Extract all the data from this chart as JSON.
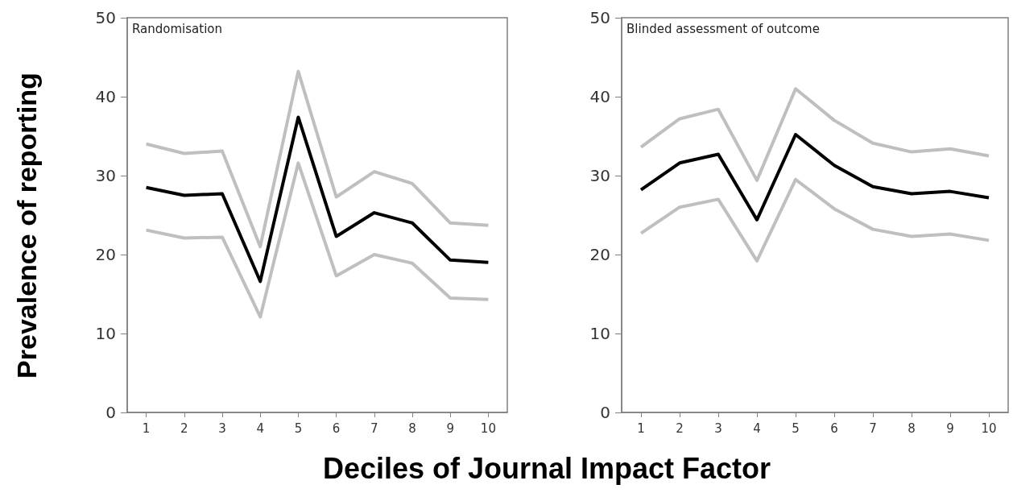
{
  "chart_data": [
    {
      "type": "line",
      "ylabel": "Prevalence of reporting",
      "xlabel": "Deciles of Journal Impact Factor",
      "annotations": [
        "Randomisation"
      ],
      "categories": [
        "1",
        "2",
        "3",
        "4",
        "5",
        "6",
        "7",
        "8",
        "9",
        "10"
      ],
      "ylim": [
        0,
        50
      ],
      "yticks": [
        0,
        10,
        20,
        30,
        40,
        50
      ],
      "grid": false,
      "marker": "none",
      "line_style": "solid",
      "series": [
        {
          "color": "#bfbfbf",
          "values": [
            34,
            32.8,
            33.1,
            21,
            43.2,
            27.3,
            30.5,
            29,
            24,
            23.7
          ]
        },
        {
          "color": "#bfbfbf",
          "values": [
            23.1,
            22.1,
            22.2,
            12.1,
            31.6,
            17.3,
            20,
            18.9,
            14.5,
            14.3
          ]
        },
        {
          "color": "#000000",
          "values": [
            28.5,
            27.5,
            27.7,
            16.6,
            37.4,
            22.3,
            25.3,
            24,
            19.3,
            19
          ]
        }
      ]
    },
    {
      "type": "line",
      "annotations": [
        "Blinded assessment of outcome"
      ],
      "categories": [
        "1",
        "2",
        "3",
        "4",
        "5",
        "6",
        "7",
        "8",
        "9",
        "10"
      ],
      "ylim": [
        0,
        50
      ],
      "yticks": [
        0,
        10,
        20,
        30,
        40,
        50
      ],
      "grid": false,
      "marker": "none",
      "line_style": "solid",
      "series": [
        {
          "color": "#bfbfbf",
          "values": [
            33.6,
            37.2,
            38.4,
            29.4,
            41,
            37,
            34.1,
            33,
            33.4,
            32.5
          ]
        },
        {
          "color": "#bfbfbf",
          "values": [
            22.7,
            26,
            27,
            19.2,
            29.5,
            25.8,
            23.2,
            22.3,
            22.6,
            21.8
          ]
        },
        {
          "color": "#000000",
          "values": [
            28.2,
            31.6,
            32.7,
            24.4,
            35.2,
            31.3,
            28.6,
            27.7,
            28,
            27.2
          ]
        }
      ]
    }
  ]
}
